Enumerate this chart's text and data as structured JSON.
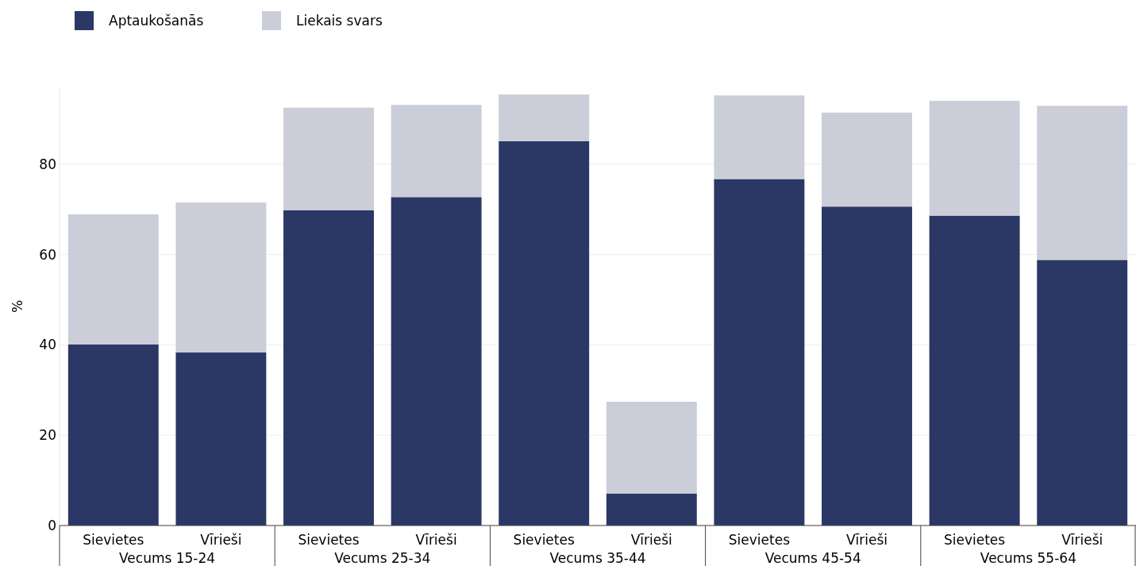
{
  "chart_data": {
    "type": "bar",
    "stacked": true,
    "ylabel": "%",
    "categories": [
      "Sievietes",
      "Vīrieši",
      "Sievietes",
      "Vīrieši",
      "Sievietes",
      "Vīrieši",
      "Sievietes",
      "Vīrieši",
      "Sievietes",
      "Vīrieši"
    ],
    "annotations": [
      "Vecums 15-24",
      "Vecums 25-34",
      "Vecums 35-44",
      "Vecums 45-54",
      "Vecums 55-64"
    ],
    "series": [
      {
        "name": "Aptaukošanās",
        "color": "#2b3764",
        "values": [
          40.1,
          38.3,
          69.8,
          72.7,
          85.1,
          7.1,
          76.7,
          70.6,
          68.6,
          58.8
        ]
      },
      {
        "name": "Liekais svars",
        "color": "#cbcdd9",
        "values": [
          28.8,
          33.2,
          22.7,
          20.4,
          10.3,
          20.3,
          18.5,
          20.8,
          25.4,
          34.1
        ]
      }
    ],
    "ylim": [
      0,
      97
    ],
    "yticks": [
      0,
      20,
      40,
      60,
      80
    ],
    "grid": "y",
    "legend": "top left"
  }
}
